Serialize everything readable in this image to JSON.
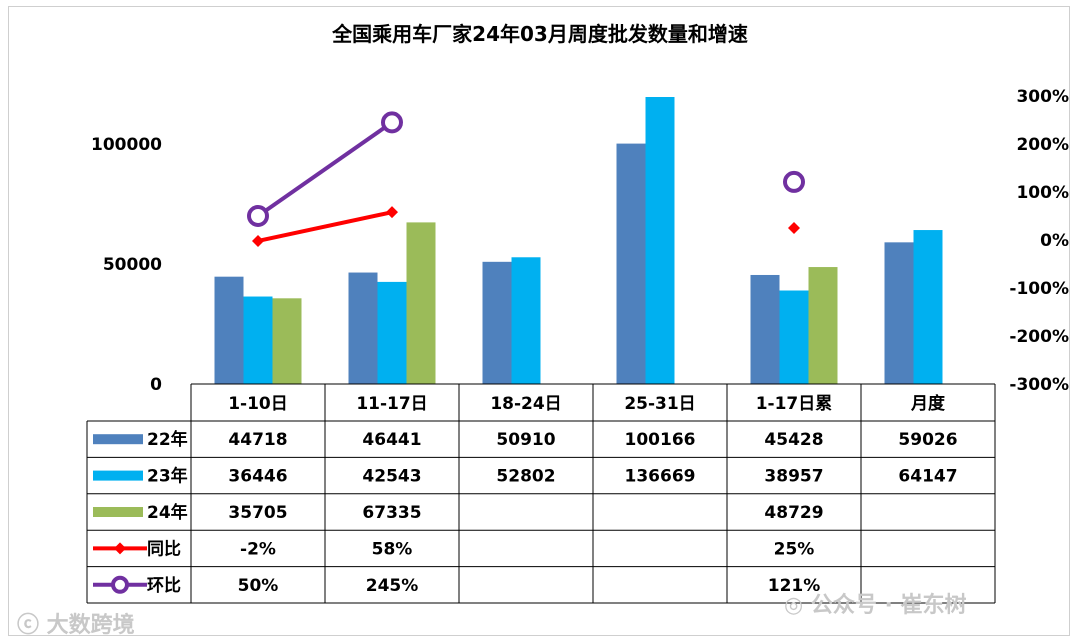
{
  "chart_data": {
    "type": "bar",
    "title": "全国乘用车厂家24年03月周度批发数量和增速",
    "categories": [
      "1-10日",
      "11-17日",
      "18-24日",
      "25-31日",
      "1-17日累",
      "月度"
    ],
    "left_axis": {
      "ticks": [
        "0",
        "50000",
        "100000"
      ],
      "tick_values": [
        0,
        50000,
        100000
      ],
      "ylim": [
        0,
        120000
      ]
    },
    "right_axis": {
      "ticks": [
        "300%",
        "200%",
        "100%",
        "0%",
        "-100%",
        "-200%",
        "-300%"
      ],
      "tick_values": [
        300,
        200,
        100,
        0,
        -100,
        -200,
        -300
      ],
      "ylim": [
        -300,
        300
      ]
    },
    "series": [
      {
        "name": "22年",
        "kind": "bar",
        "color": "#4F81BD",
        "values": [
          44718,
          46441,
          50910,
          100166,
          45428,
          59026
        ],
        "labels": [
          "44718",
          "46441",
          "50910",
          "100166",
          "45428",
          "59026"
        ]
      },
      {
        "name": "23年",
        "kind": "bar",
        "color": "#00B0F0",
        "values": [
          36446,
          42543,
          52802,
          136669,
          38957,
          64147
        ],
        "labels": [
          "36446",
          "42543",
          "52802",
          "136669",
          "38957",
          "64147"
        ]
      },
      {
        "name": "24年",
        "kind": "bar",
        "color": "#9BBB59",
        "values": [
          35705,
          67335,
          null,
          null,
          48729,
          null
        ],
        "labels": [
          "35705",
          "67335",
          "",
          "",
          "48729",
          ""
        ]
      },
      {
        "name": "同比",
        "kind": "line",
        "axis": "right",
        "color": "#FF0000",
        "marker": "diamond",
        "values": [
          -2,
          58,
          null,
          null,
          25,
          null
        ],
        "labels": [
          "-2%",
          "58%",
          "",
          "",
          "25%",
          ""
        ]
      },
      {
        "name": "环比",
        "kind": "line",
        "axis": "right",
        "color": "#7030A0",
        "marker": "circle",
        "values": [
          50,
          245,
          null,
          null,
          121,
          null
        ],
        "labels": [
          "50%",
          "245%",
          "",
          "",
          "121%",
          ""
        ]
      }
    ]
  },
  "watermarks": {
    "left": "大数跨境",
    "right": "公众号 · 崔东树"
  }
}
